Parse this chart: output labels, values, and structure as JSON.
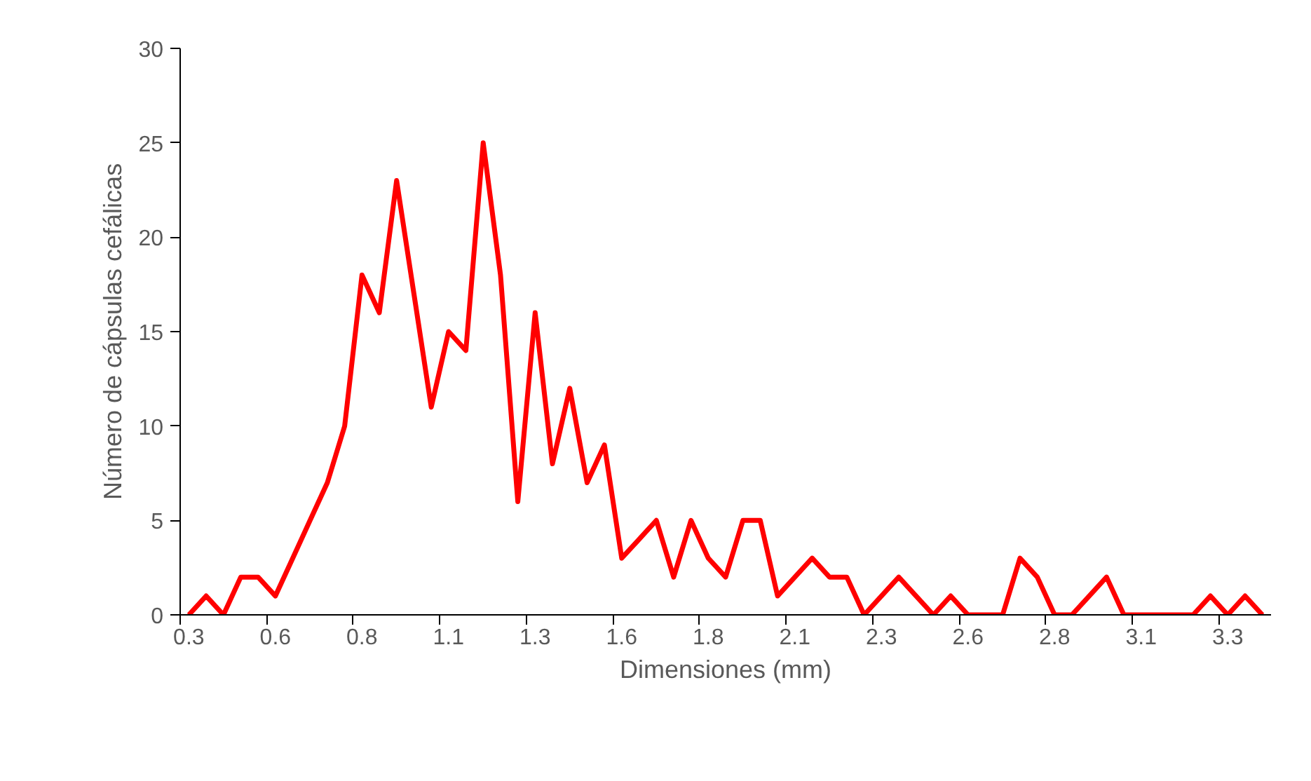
{
  "chart_data": {
    "type": "line",
    "xlabel": "Dimensiones (mm)",
    "ylabel": "Número de cápsulas cefálicas",
    "categories": [
      "0.3",
      null,
      null,
      null,
      null,
      "0.6",
      null,
      null,
      null,
      null,
      "0.8",
      null,
      null,
      null,
      null,
      "1.1",
      null,
      null,
      null,
      null,
      "1.3",
      null,
      null,
      null,
      null,
      "1.6",
      null,
      null,
      null,
      null,
      "1.8",
      null,
      null,
      null,
      null,
      "2.1",
      null,
      null,
      null,
      null,
      "2.3",
      null,
      null,
      null,
      null,
      "2.6",
      null,
      null,
      null,
      null,
      "2.8",
      null,
      null,
      null,
      null,
      "3.1",
      null,
      null,
      null,
      null,
      "3.3",
      null,
      null
    ],
    "series": [
      {
        "color": "#ff0000",
        "values": [
          0,
          1,
          0,
          2,
          2,
          1,
          3,
          5,
          7,
          10,
          18,
          16,
          23,
          17,
          11,
          15,
          14,
          25,
          18,
          6,
          16,
          8,
          12,
          7,
          9,
          3,
          4,
          5,
          2,
          5,
          3,
          2,
          5,
          5,
          1,
          2,
          3,
          2,
          2,
          0,
          1,
          2,
          1,
          0,
          1,
          0,
          0,
          0,
          3,
          2,
          0,
          0,
          1,
          2,
          0,
          0,
          0,
          0,
          0,
          1,
          0,
          1,
          0
        ]
      }
    ],
    "ylim": [
      0,
      30
    ],
    "yticks": [
      0,
      5,
      10,
      15,
      20,
      25,
      30
    ],
    "grid": false,
    "marker": "none",
    "line_style": "solid"
  }
}
